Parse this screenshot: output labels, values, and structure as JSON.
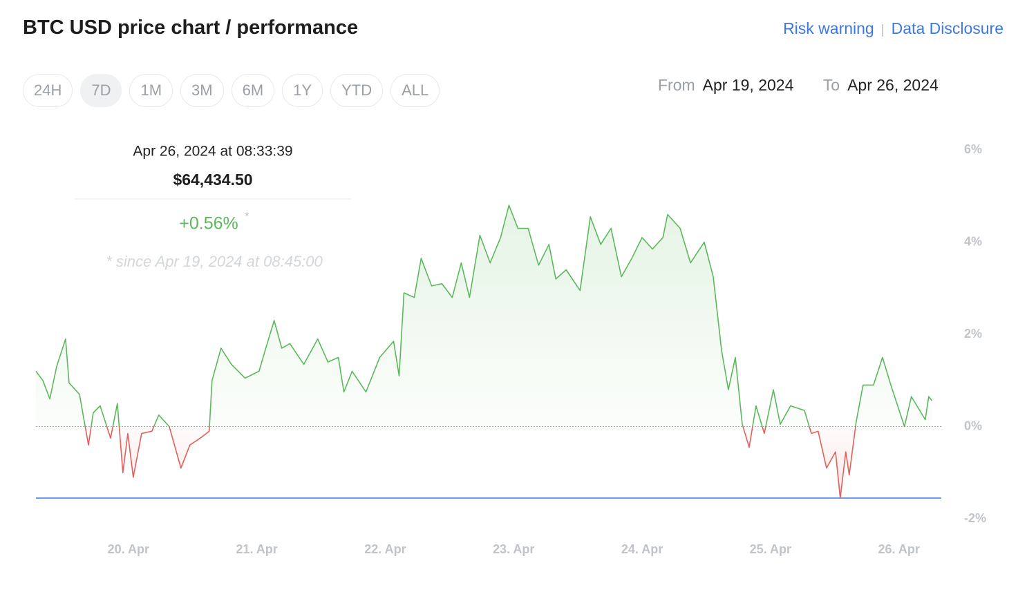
{
  "header": {
    "title": "BTC USD price chart / performance",
    "links": [
      "Risk warning",
      "Data Disclosure"
    ],
    "separator": "|"
  },
  "ranges": {
    "options": [
      "24H",
      "7D",
      "1M",
      "3M",
      "6M",
      "1Y",
      "YTD",
      "ALL"
    ],
    "selected": 1
  },
  "date_range": {
    "from_label": "From",
    "from": "Apr 19, 2024",
    "to_label": "To",
    "to": "Apr 26, 2024"
  },
  "tooltip": {
    "time": "Apr 26, 2024 at 08:33:39",
    "price": "$64,434.50",
    "change": "+0.56%",
    "asterisk": "*",
    "note": "* since Apr 19, 2024 at 08:45:00"
  },
  "chart_data": {
    "type": "line",
    "x": [
      19.28,
      19.334,
      19.388,
      19.441,
      19.511,
      19.538,
      19.619,
      19.689,
      19.726,
      19.78,
      19.861,
      19.914,
      19.957,
      19.995,
      20.038,
      20.103,
      20.183,
      20.237,
      20.318,
      20.409,
      20.479,
      20.56,
      20.629,
      20.651,
      20.721,
      20.802,
      20.909,
      21.017,
      21.07,
      21.135,
      21.194,
      21.258,
      21.366,
      21.474,
      21.554,
      21.635,
      21.678,
      21.742,
      21.85,
      21.957,
      22.065,
      22.108,
      22.146,
      22.226,
      22.28,
      22.361,
      22.441,
      22.522,
      22.592,
      22.656,
      22.737,
      22.817,
      22.898,
      22.963,
      23.033,
      23.113,
      23.194,
      23.275,
      23.328,
      23.409,
      23.517,
      23.597,
      23.678,
      23.758,
      23.839,
      23.92,
      24.0,
      24.081,
      24.162,
      24.199,
      24.296,
      24.377,
      24.484,
      24.554,
      24.619,
      24.672,
      24.726,
      24.78,
      24.834,
      24.887,
      24.952,
      25.022,
      25.076,
      25.156,
      25.264,
      25.318,
      25.371,
      25.436,
      25.506,
      25.543,
      25.586,
      25.613,
      25.667,
      25.721,
      25.802,
      25.872,
      25.937,
      26.043,
      26.097,
      26.205,
      26.232,
      26.258
    ],
    "values": [
      1.2,
      1.0,
      0.6,
      1.3,
      1.9,
      0.95,
      0.7,
      -0.4,
      0.3,
      0.45,
      -0.25,
      0.5,
      -1.0,
      -0.15,
      -1.1,
      -0.15,
      -0.1,
      0.25,
      0,
      -0.9,
      -0.4,
      -0.25,
      -0.1,
      1.0,
      1.7,
      1.35,
      1.05,
      1.2,
      1.7,
      2.3,
      1.7,
      1.8,
      1.35,
      1.9,
      1.4,
      1.5,
      0.75,
      1.2,
      0.75,
      1.5,
      1.85,
      1.1,
      2.9,
      2.8,
      3.65,
      3.05,
      3.1,
      2.8,
      3.55,
      2.8,
      4.15,
      3.55,
      4.1,
      4.8,
      4.3,
      4.3,
      3.5,
      3.95,
      3.2,
      3.4,
      2.95,
      4.55,
      3.95,
      4.3,
      3.25,
      3.65,
      4.1,
      3.85,
      4.1,
      4.6,
      4.3,
      3.55,
      4.0,
      3.25,
      1.65,
      0.8,
      1.5,
      0.05,
      -0.45,
      0.45,
      -0.15,
      0.8,
      0.05,
      0.45,
      0.35,
      -0.15,
      -0.1,
      -0.9,
      -0.55,
      -1.55,
      -0.55,
      -1.05,
      0.1,
      0.9,
      0.9,
      1.5,
      0.9,
      0,
      0.65,
      0.15,
      0.65,
      0.56
    ],
    "color": "#5cb85c",
    "negative_color": "#e0605a",
    "baseline_color": "#aaaaaa",
    "low_line": {
      "value": -1.55,
      "color": "#3b78e7"
    },
    "xlim": [
      19.28,
      26.33
    ],
    "xticks": [
      {
        "value": 20,
        "label": "20. Apr"
      },
      {
        "value": 21,
        "label": "21. Apr"
      },
      {
        "value": 22,
        "label": "22. Apr"
      },
      {
        "value": 23,
        "label": "23. Apr"
      },
      {
        "value": 24,
        "label": "24. Apr"
      },
      {
        "value": 25,
        "label": "25. Apr"
      },
      {
        "value": 26,
        "label": "26. Apr"
      }
    ],
    "ylim": [
      -2,
      6
    ],
    "yticks": [
      {
        "value": 6,
        "label": "6%"
      },
      {
        "value": 4,
        "label": "4%"
      },
      {
        "value": 2,
        "label": "2%"
      },
      {
        "value": 0,
        "label": "0%"
      },
      {
        "value": -2,
        "label": "-2%"
      }
    ]
  }
}
